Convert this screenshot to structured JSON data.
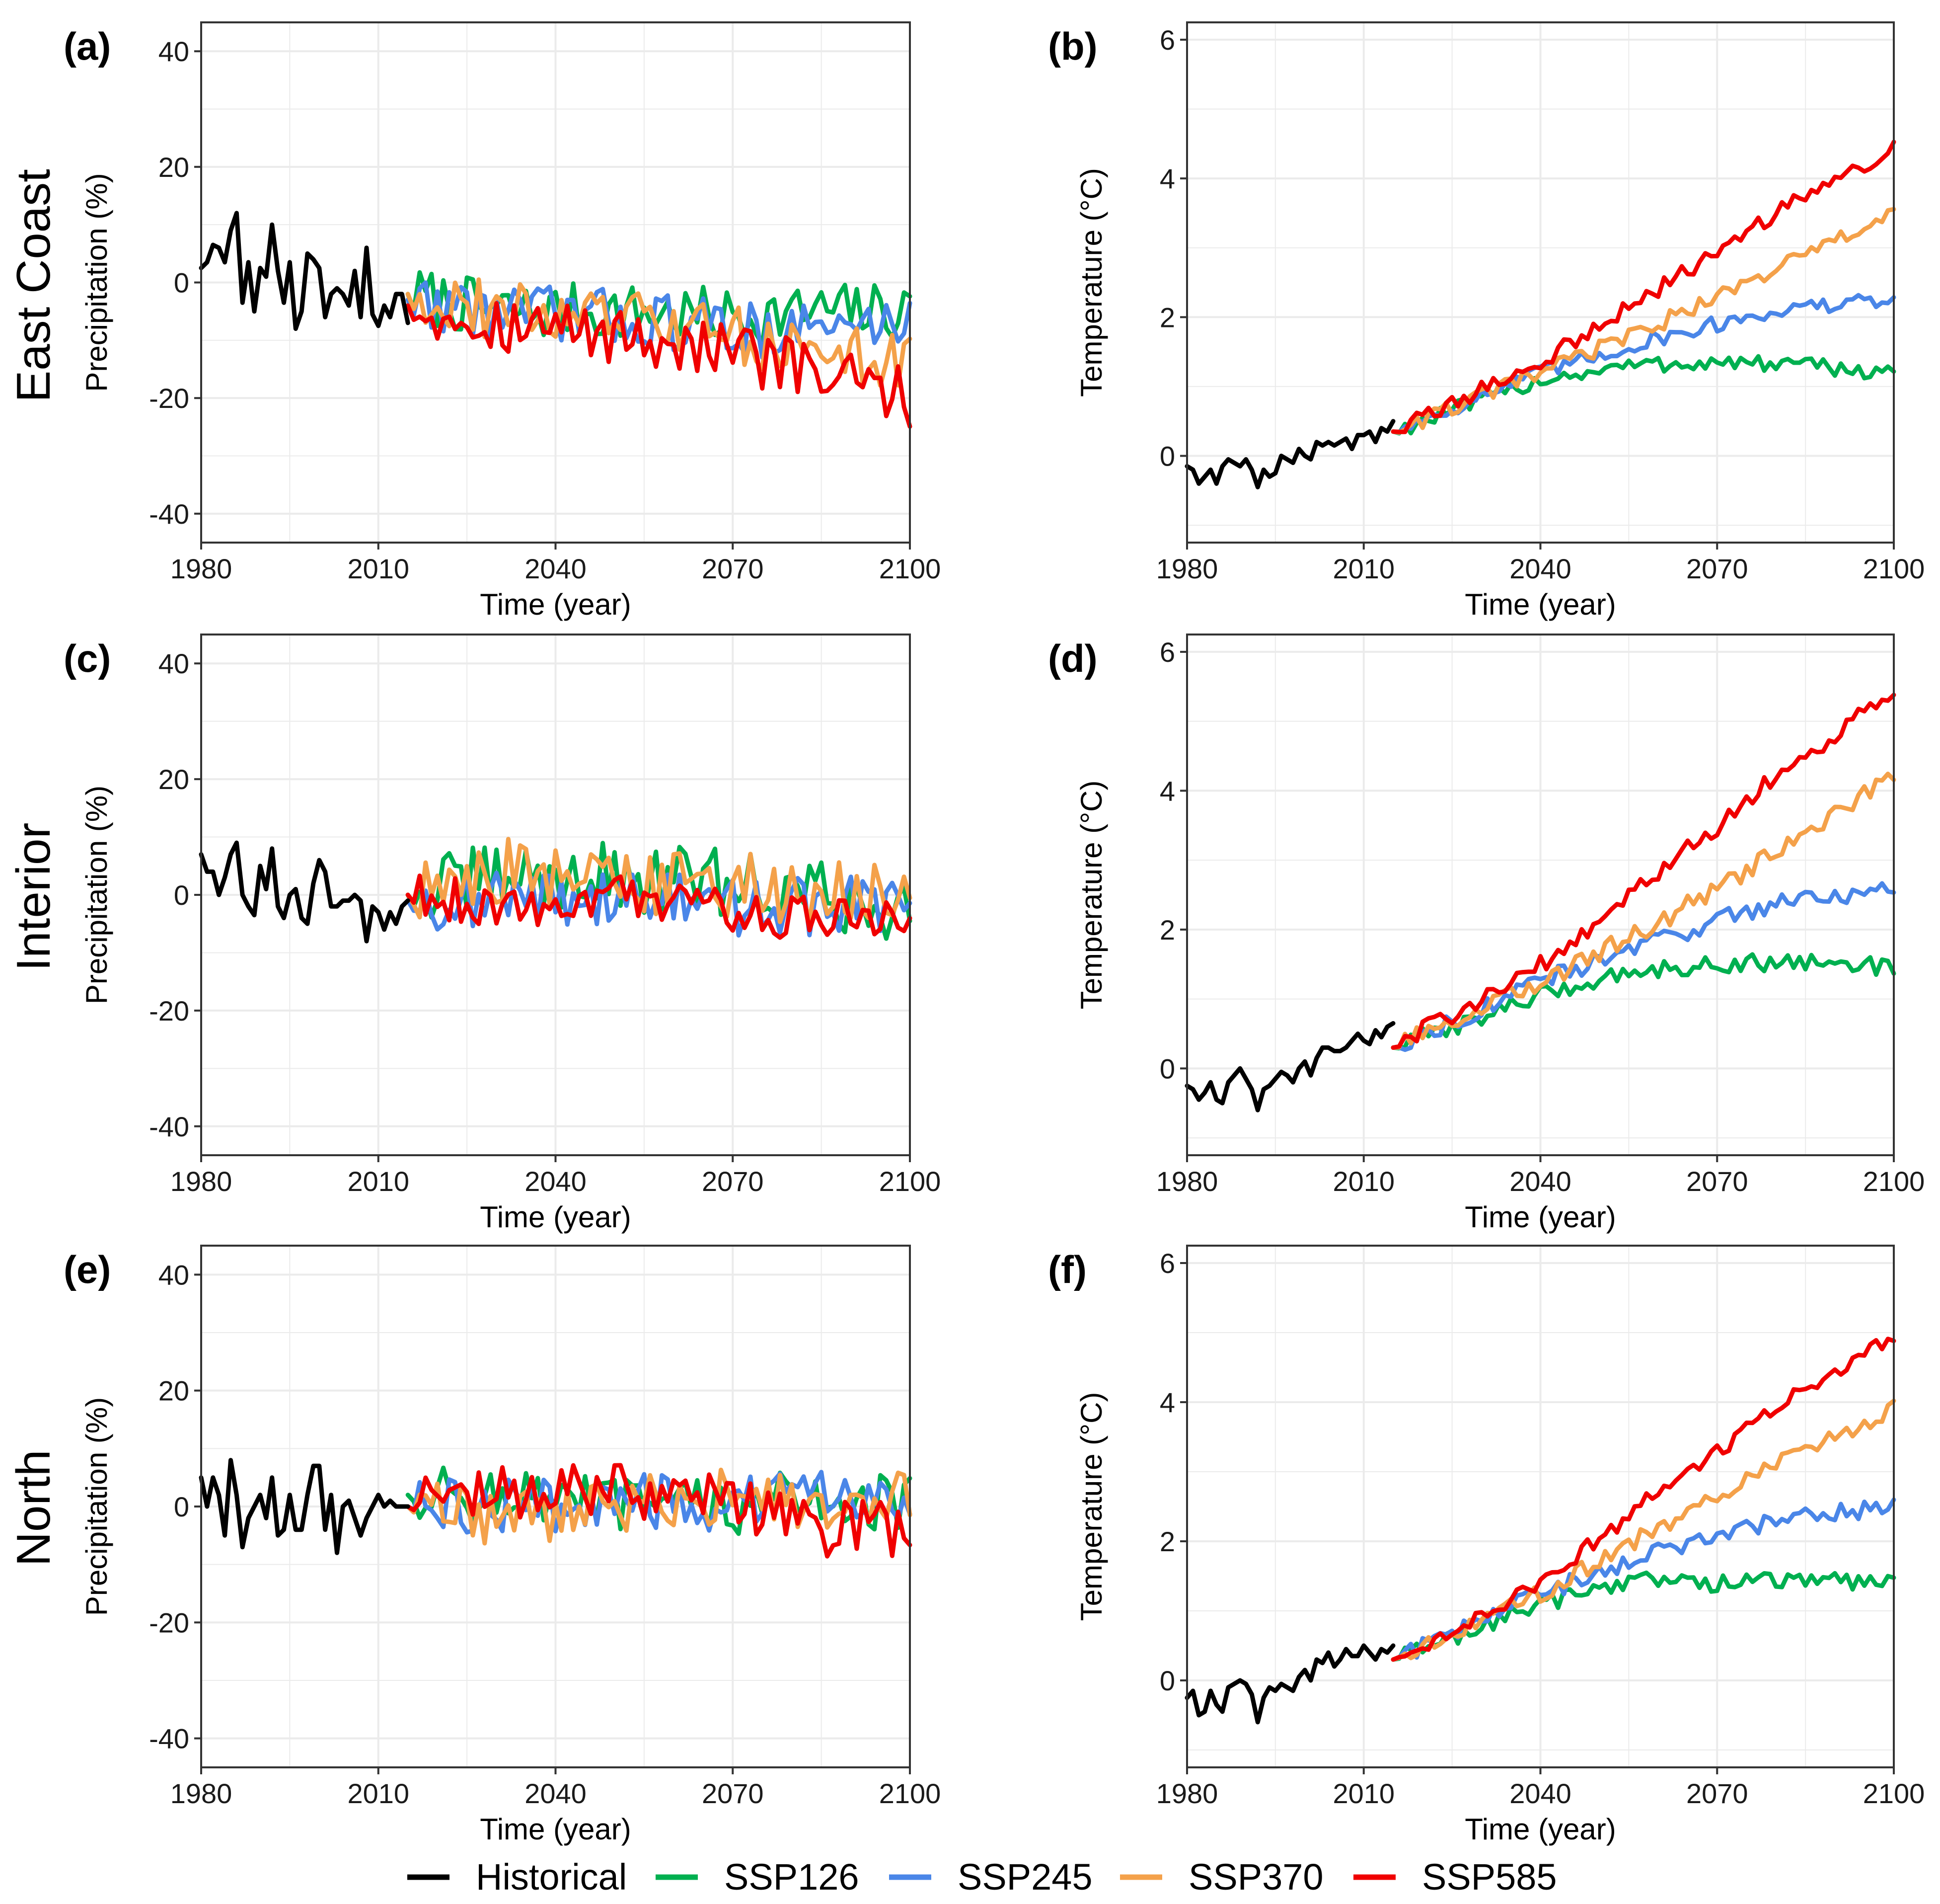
{
  "figure": {
    "row_labels": [
      "East Coast",
      "Interior",
      "North"
    ],
    "legend": [
      {
        "name": "Historical",
        "color": "#000000"
      },
      {
        "name": "SSP126",
        "color": "#00b050"
      },
      {
        "name": "SSP245",
        "color": "#4a86e8"
      },
      {
        "name": "SSP370",
        "color": "#f4a14a"
      },
      {
        "name": "SSP585",
        "color": "#f00000"
      }
    ]
  },
  "chart_data": [
    {
      "panel": "(a)",
      "region": "East Coast",
      "type": "line",
      "xlabel": "Time (year)",
      "ylabel": "Precipitation (%)",
      "xlim": [
        1980,
        2100
      ],
      "ylim": [
        -45,
        45
      ],
      "xticks": [
        1980,
        2010,
        2040,
        2070,
        2100
      ],
      "yticks": [
        -40,
        -20,
        0,
        20,
        40
      ],
      "grid": true,
      "historical": {
        "x_start": 1980,
        "values": [
          2.5,
          3.5,
          6.5,
          6,
          3.5,
          9,
          12,
          -3.5,
          3.5,
          -5,
          2.5,
          1,
          10,
          2,
          -3.5,
          3.5,
          -8,
          -5,
          5,
          4,
          2.5,
          -6,
          -2,
          -1,
          -2,
          -4,
          2,
          -6,
          6,
          -5.5,
          -7.5,
          -4,
          -6,
          -2,
          -2,
          -7
        ]
      },
      "scenarios": {
        "x_start": 2015,
        "SSP126": {
          "anchors": [
            [
              2015,
              -2
            ],
            [
              2030,
              -5
            ],
            [
              2050,
              -5
            ],
            [
              2070,
              -6
            ],
            [
              2085,
              -5
            ],
            [
              2100,
              -5
            ]
          ],
          "amp": 5
        },
        "SSP245": {
          "anchors": [
            [
              2015,
              -3
            ],
            [
              2030,
              -5
            ],
            [
              2050,
              -6
            ],
            [
              2070,
              -8
            ],
            [
              2085,
              -8
            ],
            [
              2100,
              -7
            ]
          ],
          "amp": 5
        },
        "SSP370": {
          "anchors": [
            [
              2015,
              -2
            ],
            [
              2030,
              -5
            ],
            [
              2050,
              -6
            ],
            [
              2070,
              -9
            ],
            [
              2085,
              -12
            ],
            [
              2100,
              -14
            ]
          ],
          "amp": 5
        },
        "SSP585": {
          "anchors": [
            [
              2015,
              -4
            ],
            [
              2030,
              -7
            ],
            [
              2050,
              -9
            ],
            [
              2070,
              -12
            ],
            [
              2085,
              -16
            ],
            [
              2100,
              -20
            ]
          ],
          "amp": 5
        }
      }
    },
    {
      "panel": "(b)",
      "region": "East Coast",
      "type": "line",
      "xlabel": "Time (year)",
      "ylabel": "Temperature (°C)",
      "xlim": [
        1980,
        2100
      ],
      "ylim": [
        -1.25,
        6.25
      ],
      "xticks": [
        1980,
        2010,
        2040,
        2070,
        2100
      ],
      "yticks": [
        0,
        2,
        4,
        6
      ],
      "grid": true,
      "historical": {
        "x_start": 1980,
        "values": [
          -0.15,
          -0.2,
          -0.4,
          -0.3,
          -0.2,
          -0.4,
          -0.15,
          -0.05,
          -0.1,
          -0.15,
          -0.05,
          -0.2,
          -0.45,
          -0.2,
          -0.3,
          -0.25,
          0.0,
          -0.05,
          -0.1,
          0.1,
          0.0,
          -0.05,
          0.2,
          0.15,
          0.2,
          0.15,
          0.2,
          0.25,
          0.1,
          0.3,
          0.3,
          0.35,
          0.2,
          0.4,
          0.35,
          0.5
        ]
      },
      "scenarios": {
        "x_start": 2015,
        "SSP126": {
          "anchors": [
            [
              2015,
              0.35
            ],
            [
              2040,
              1.1
            ],
            [
              2055,
              1.3
            ],
            [
              2070,
              1.35
            ],
            [
              2085,
              1.3
            ],
            [
              2100,
              1.2
            ]
          ],
          "amp": 0.12
        },
        "SSP245": {
          "anchors": [
            [
              2015,
              0.35
            ],
            [
              2040,
              1.2
            ],
            [
              2060,
              1.7
            ],
            [
              2080,
              2.1
            ],
            [
              2100,
              2.25
            ]
          ],
          "amp": 0.12
        },
        "SSP370": {
          "anchors": [
            [
              2015,
              0.35
            ],
            [
              2040,
              1.2
            ],
            [
              2060,
              1.9
            ],
            [
              2080,
              2.7
            ],
            [
              2100,
              3.5
            ]
          ],
          "amp": 0.12
        },
        "SSP585": {
          "anchors": [
            [
              2015,
              0.35
            ],
            [
              2040,
              1.35
            ],
            [
              2060,
              2.4
            ],
            [
              2080,
              3.5
            ],
            [
              2100,
              4.45
            ]
          ],
          "amp": 0.12
        }
      }
    },
    {
      "panel": "(c)",
      "region": "Interior",
      "type": "line",
      "xlabel": "Time (year)",
      "ylabel": "Precipitation (%)",
      "xlim": [
        1980,
        2100
      ],
      "ylim": [
        -45,
        45
      ],
      "xticks": [
        1980,
        2010,
        2040,
        2070,
        2100
      ],
      "yticks": [
        -40,
        -20,
        0,
        20,
        40
      ],
      "grid": true,
      "historical": {
        "x_start": 1980,
        "values": [
          7,
          4,
          4,
          0,
          3,
          7,
          9,
          0,
          -2,
          -3.5,
          5,
          1,
          8,
          -2,
          -4,
          0,
          1,
          -4,
          -5,
          2,
          6,
          4,
          -2,
          -2,
          -1,
          -1,
          0,
          -1,
          -8,
          -2,
          -3,
          -6,
          -3,
          -5,
          -2,
          -1
        ]
      },
      "scenarios": {
        "x_start": 2015,
        "SSP126": {
          "anchors": [
            [
              2015,
              0
            ],
            [
              2030,
              3
            ],
            [
              2050,
              3
            ],
            [
              2070,
              2
            ],
            [
              2085,
              0
            ],
            [
              2100,
              -3
            ]
          ],
          "amp": 6
        },
        "SSP245": {
          "anchors": [
            [
              2015,
              -1
            ],
            [
              2030,
              -1
            ],
            [
              2050,
              0
            ],
            [
              2070,
              -2
            ],
            [
              2085,
              -2
            ],
            [
              2100,
              -1
            ]
          ],
          "amp": 5
        },
        "SSP370": {
          "anchors": [
            [
              2015,
              0
            ],
            [
              2030,
              4
            ],
            [
              2050,
              2
            ],
            [
              2070,
              2
            ],
            [
              2085,
              0
            ],
            [
              2100,
              -1
            ]
          ],
          "amp": 6
        },
        "SSP585": {
          "anchors": [
            [
              2015,
              0
            ],
            [
              2030,
              -2
            ],
            [
              2050,
              0
            ],
            [
              2070,
              -3
            ],
            [
              2085,
              -4
            ],
            [
              2100,
              -5
            ]
          ],
          "amp": 4
        }
      }
    },
    {
      "panel": "(d)",
      "region": "Interior",
      "type": "line",
      "xlabel": "Time (year)",
      "ylabel": "Temperature (°C)",
      "xlim": [
        1980,
        2100
      ],
      "ylim": [
        -1.25,
        6.25
      ],
      "xticks": [
        1980,
        2010,
        2040,
        2070,
        2100
      ],
      "yticks": [
        0,
        2,
        4,
        6
      ],
      "grid": true,
      "historical": {
        "x_start": 1980,
        "values": [
          -0.25,
          -0.3,
          -0.45,
          -0.35,
          -0.2,
          -0.45,
          -0.5,
          -0.2,
          -0.1,
          0.0,
          -0.15,
          -0.3,
          -0.6,
          -0.3,
          -0.25,
          -0.15,
          -0.05,
          -0.1,
          -0.2,
          0.0,
          0.1,
          -0.1,
          0.15,
          0.3,
          0.3,
          0.25,
          0.25,
          0.3,
          0.4,
          0.5,
          0.4,
          0.35,
          0.55,
          0.45,
          0.6,
          0.65
        ]
      },
      "scenarios": {
        "x_start": 2015,
        "SSP126": {
          "anchors": [
            [
              2015,
              0.3
            ],
            [
              2040,
              1.05
            ],
            [
              2055,
              1.4
            ],
            [
              2070,
              1.5
            ],
            [
              2085,
              1.55
            ],
            [
              2100,
              1.45
            ]
          ],
          "amp": 0.13
        },
        "SSP245": {
          "anchors": [
            [
              2015,
              0.3
            ],
            [
              2040,
              1.25
            ],
            [
              2060,
              1.85
            ],
            [
              2080,
              2.4
            ],
            [
              2100,
              2.6
            ]
          ],
          "amp": 0.14
        },
        "SSP370": {
          "anchors": [
            [
              2015,
              0.3
            ],
            [
              2040,
              1.25
            ],
            [
              2060,
              2.1
            ],
            [
              2080,
              3.1
            ],
            [
              2100,
              4.2
            ]
          ],
          "amp": 0.14
        },
        "SSP585": {
          "anchors": [
            [
              2015,
              0.3
            ],
            [
              2040,
              1.5
            ],
            [
              2060,
              2.8
            ],
            [
              2080,
              4.2
            ],
            [
              2100,
              5.4
            ]
          ],
          "amp": 0.14
        }
      }
    },
    {
      "panel": "(e)",
      "region": "North",
      "type": "line",
      "xlabel": "Time (year)",
      "ylabel": "Precipitation (%)",
      "xlim": [
        1980,
        2100
      ],
      "ylim": [
        -45,
        45
      ],
      "xticks": [
        1980,
        2010,
        2040,
        2070,
        2100
      ],
      "yticks": [
        -40,
        -20,
        0,
        20,
        40
      ],
      "grid": true,
      "historical": {
        "x_start": 1980,
        "values": [
          5,
          0,
          5,
          2,
          -5,
          8,
          2,
          -7,
          -2,
          0,
          2,
          -2,
          5,
          -5,
          -4,
          2,
          -4,
          -4,
          2,
          7,
          7,
          -4,
          2,
          -8,
          0,
          1,
          -2,
          -5,
          -2,
          0,
          2,
          0,
          1,
          0,
          0,
          0
        ]
      },
      "scenarios": {
        "x_start": 2015,
        "SSP126": {
          "anchors": [
            [
              2015,
              2
            ],
            [
              2030,
              2
            ],
            [
              2050,
              0
            ],
            [
              2070,
              0
            ],
            [
              2085,
              2
            ],
            [
              2100,
              0
            ]
          ],
          "amp": 5
        },
        "SSP245": {
          "anchors": [
            [
              2015,
              0
            ],
            [
              2030,
              0
            ],
            [
              2050,
              1
            ],
            [
              2070,
              0
            ],
            [
              2085,
              2
            ],
            [
              2100,
              3
            ]
          ],
          "amp": 5
        },
        "SSP370": {
          "anchors": [
            [
              2015,
              0
            ],
            [
              2030,
              -2
            ],
            [
              2050,
              0
            ],
            [
              2070,
              2
            ],
            [
              2085,
              0
            ],
            [
              2100,
              2
            ]
          ],
          "amp": 5
        },
        "SSP585": {
          "anchors": [
            [
              2015,
              0
            ],
            [
              2030,
              2
            ],
            [
              2050,
              3
            ],
            [
              2070,
              0
            ],
            [
              2085,
              -4
            ],
            [
              2100,
              -4
            ]
          ],
          "amp": 5
        }
      }
    },
    {
      "panel": "(f)",
      "region": "North",
      "type": "line",
      "xlabel": "Time (year)",
      "ylabel": "Temperature (°C)",
      "xlim": [
        1980,
        2100
      ],
      "ylim": [
        -1.25,
        6.25
      ],
      "xticks": [
        1980,
        2010,
        2040,
        2070,
        2100
      ],
      "yticks": [
        0,
        2,
        4,
        6
      ],
      "grid": true,
      "historical": {
        "x_start": 1980,
        "values": [
          -0.25,
          -0.15,
          -0.5,
          -0.45,
          -0.15,
          -0.35,
          -0.45,
          -0.1,
          -0.05,
          0.0,
          -0.05,
          -0.2,
          -0.6,
          -0.25,
          -0.1,
          -0.15,
          -0.05,
          -0.1,
          -0.15,
          0.05,
          0.15,
          0.0,
          0.3,
          0.25,
          0.4,
          0.2,
          0.3,
          0.45,
          0.35,
          0.35,
          0.5,
          0.4,
          0.3,
          0.45,
          0.4,
          0.5
        ]
      },
      "scenarios": {
        "x_start": 2015,
        "SSP126": {
          "anchors": [
            [
              2015,
              0.3
            ],
            [
              2040,
              1.1
            ],
            [
              2055,
              1.45
            ],
            [
              2070,
              1.4
            ],
            [
              2085,
              1.45
            ],
            [
              2100,
              1.4
            ]
          ],
          "amp": 0.13
        },
        "SSP245": {
          "anchors": [
            [
              2015,
              0.3
            ],
            [
              2040,
              1.25
            ],
            [
              2060,
              1.85
            ],
            [
              2080,
              2.3
            ],
            [
              2100,
              2.5
            ]
          ],
          "amp": 0.13
        },
        "SSP370": {
          "anchors": [
            [
              2015,
              0.3
            ],
            [
              2040,
              1.25
            ],
            [
              2060,
              2.2
            ],
            [
              2080,
              3.1
            ],
            [
              2100,
              3.9
            ]
          ],
          "amp": 0.13
        },
        "SSP585": {
          "anchors": [
            [
              2015,
              0.3
            ],
            [
              2040,
              1.4
            ],
            [
              2060,
              2.7
            ],
            [
              2080,
              3.9
            ],
            [
              2100,
              5.0
            ]
          ],
          "amp": 0.13
        }
      }
    }
  ]
}
